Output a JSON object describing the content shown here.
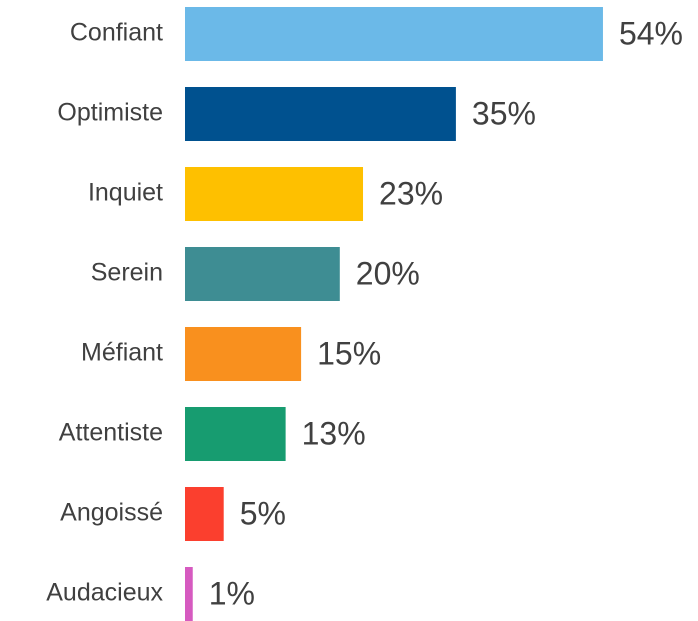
{
  "chart_data": {
    "type": "barh",
    "categories": [
      "Confiant",
      "Optimiste",
      "Inquiet",
      "Serein",
      "Méfiant",
      "Attentiste",
      "Angoissé",
      "Audacieux"
    ],
    "values": [
      54,
      35,
      23,
      20,
      15,
      13,
      5,
      1
    ],
    "value_labels": [
      "54%",
      "35%",
      "23%",
      "20%",
      "15%",
      "13%",
      "5%",
      "1%"
    ],
    "colors": [
      "#6bb9e8",
      "#00518f",
      "#fec000",
      "#3e8d93",
      "#f9901e",
      "#179c70",
      "#fb3f2e",
      "#d65ac0"
    ]
  }
}
